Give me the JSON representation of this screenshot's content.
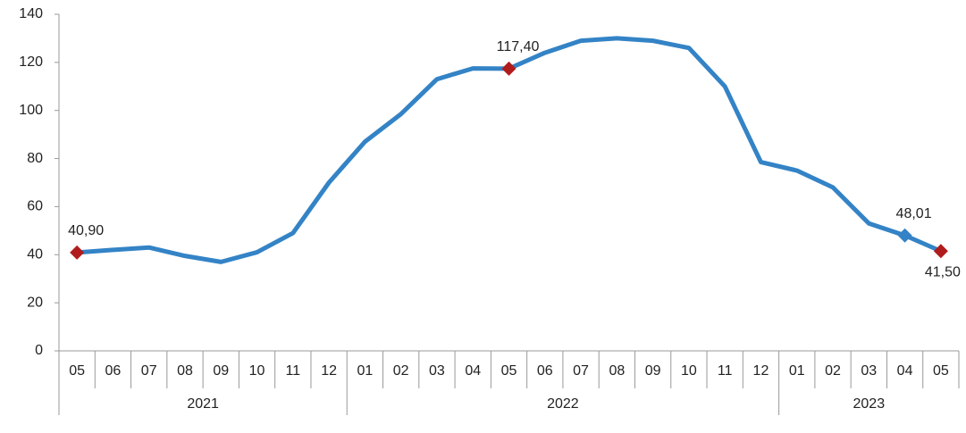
{
  "chart_data": {
    "type": "line",
    "categories": [
      "05",
      "06",
      "07",
      "08",
      "09",
      "10",
      "11",
      "12",
      "01",
      "02",
      "03",
      "04",
      "05",
      "06",
      "07",
      "08",
      "09",
      "10",
      "11",
      "12",
      "01",
      "02",
      "03",
      "04",
      "05"
    ],
    "x_groups": [
      {
        "label": "2021",
        "span": 8
      },
      {
        "label": "2022",
        "span": 12
      },
      {
        "label": "2023",
        "span": 5
      }
    ],
    "series": [
      {
        "color": "#3383c6",
        "values": [
          40.9,
          42,
          43,
          39.5,
          37,
          41,
          49,
          70,
          87,
          98.5,
          113,
          117.5,
          117.4,
          124,
          129,
          130,
          129,
          126,
          110,
          78.5,
          75,
          68,
          53,
          48.01,
          41.5
        ],
        "value_labels": [
          "40,90",
          null,
          null,
          null,
          null,
          null,
          null,
          null,
          null,
          null,
          null,
          null,
          "117,40",
          null,
          null,
          null,
          null,
          null,
          null,
          null,
          null,
          null,
          null,
          "48,01",
          "41,50"
        ],
        "marker_colors": [
          "#b01c1c",
          null,
          null,
          null,
          null,
          null,
          null,
          null,
          null,
          null,
          null,
          null,
          "#b01c1c",
          null,
          null,
          null,
          null,
          null,
          null,
          null,
          null,
          null,
          null,
          "#3383c6",
          "#b01c1c"
        ]
      }
    ],
    "ylim": [
      0,
      140
    ],
    "yticks": [
      0,
      20,
      40,
      60,
      80,
      100,
      120,
      140
    ],
    "grid": false
  }
}
